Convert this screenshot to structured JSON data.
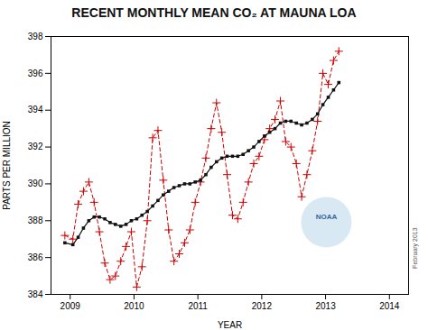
{
  "chart_data": {
    "type": "line",
    "title": "RECENT MONTHLY MEAN CO₂ AT MAUNA LOA",
    "x_label": "YEAR",
    "y_label": "PARTS PER MILLION",
    "xlim": [
      2008.7,
      2014.3
    ],
    "ylim": [
      384,
      398
    ],
    "xticks": [
      2009,
      2010,
      2011,
      2012,
      2013,
      2014
    ],
    "yticks": [
      384,
      386,
      388,
      390,
      392,
      394,
      396,
      398
    ],
    "grid": false,
    "x": [
      2008.917,
      2009.042,
      2009.125,
      2009.208,
      2009.292,
      2009.375,
      2009.458,
      2009.542,
      2009.625,
      2009.708,
      2009.792,
      2009.875,
      2009.958,
      2010.042,
      2010.125,
      2010.208,
      2010.292,
      2010.375,
      2010.458,
      2010.542,
      2010.625,
      2010.708,
      2010.792,
      2010.875,
      2010.958,
      2011.042,
      2011.125,
      2011.208,
      2011.292,
      2011.375,
      2011.458,
      2011.542,
      2011.625,
      2011.708,
      2011.792,
      2011.875,
      2011.958,
      2012.042,
      2012.125,
      2012.208,
      2012.292,
      2012.375,
      2012.458,
      2012.542,
      2012.625,
      2012.708,
      2012.792,
      2012.875,
      2012.958,
      2013.042,
      2013.125,
      2013.208
    ],
    "series": [
      {
        "color": "#cc0000",
        "line_style": "dashed",
        "marker": "plus",
        "values": [
          387.2,
          387.0,
          388.9,
          389.6,
          390.1,
          389.0,
          387.4,
          385.7,
          384.8,
          385.0,
          385.8,
          386.6,
          387.4,
          384.4,
          385.5,
          388.0,
          392.5,
          392.9,
          390.2,
          387.5,
          385.8,
          386.2,
          386.8,
          387.5,
          389.0,
          390.1,
          391.4,
          393.0,
          394.4,
          392.8,
          390.5,
          388.3,
          388.1,
          389.0,
          390.1,
          391.1,
          391.5,
          392.4,
          393.0,
          393.5,
          394.5,
          392.3,
          392.0,
          391.1,
          389.3,
          390.5,
          391.8,
          393.4,
          396.0,
          395.4,
          396.7,
          397.2
        ]
      },
      {
        "color": "#111111",
        "line_style": "solid",
        "marker": "square",
        "values": [
          386.8,
          386.7,
          387.1,
          387.6,
          388.0,
          388.2,
          388.2,
          388.1,
          387.9,
          387.8,
          387.7,
          387.8,
          388.0,
          388.1,
          388.3,
          388.5,
          388.8,
          389.1,
          389.4,
          389.6,
          389.8,
          389.9,
          390.0,
          390.0,
          390.1,
          390.2,
          390.5,
          390.9,
          391.2,
          391.4,
          391.5,
          391.5,
          391.5,
          391.6,
          391.8,
          392.0,
          392.3,
          392.6,
          392.8,
          393.0,
          393.3,
          393.4,
          393.4,
          393.3,
          393.2,
          393.3,
          393.5,
          393.8,
          394.3,
          394.7,
          395.1,
          395.5
        ]
      }
    ],
    "annotations": [
      {
        "text": "NOAA"
      },
      {
        "text": "February 2013"
      }
    ]
  }
}
